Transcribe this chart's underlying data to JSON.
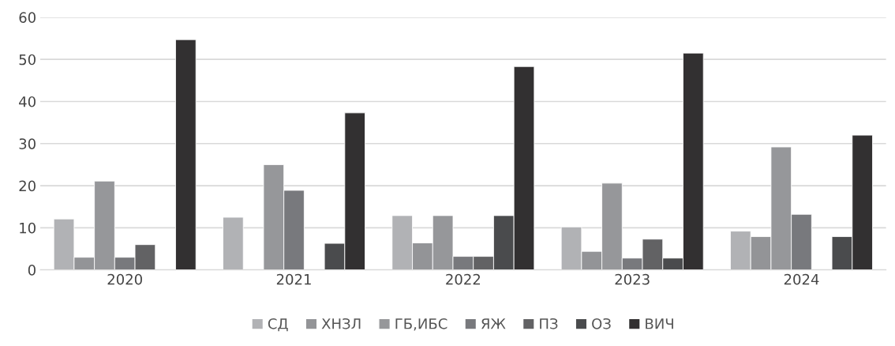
{
  "chart_data": {
    "type": "bar",
    "categories": [
      "2020",
      "2021",
      "2022",
      "2023",
      "2024"
    ],
    "series": [
      {
        "name": "СД",
        "color": "#b1b2b5",
        "values": [
          12.1,
          12.5,
          12.9,
          10.2,
          9.2
        ]
      },
      {
        "name": "ХНЗЛ",
        "color": "#939497",
        "values": [
          3,
          null,
          6.4,
          4.4,
          7.9
        ]
      },
      {
        "name": "ГБ,ИБС",
        "color": "#96979a",
        "values": [
          21.1,
          25,
          12.9,
          20.6,
          29.2
        ]
      },
      {
        "name": "ЯЖ",
        "color": "#78797d",
        "values": [
          3,
          18.9,
          3.2,
          2.8,
          13.2
        ]
      },
      {
        "name": "ПЗ",
        "color": "#626264",
        "values": [
          6,
          null,
          3.2,
          7.3,
          null
        ]
      },
      {
        "name": "ОЗ",
        "color": "#4a4b4d",
        "values": [
          null,
          6.3,
          12.9,
          2.8,
          7.9
        ]
      },
      {
        "name": "ВИЧ",
        "color": "#323031",
        "values": [
          54.7,
          37.3,
          48.3,
          51.5,
          32
        ]
      }
    ],
    "ylim": [
      0,
      60
    ],
    "yticks": [
      0,
      10,
      20,
      30,
      40,
      50,
      60
    ],
    "grid": "y",
    "legend": "bottom"
  }
}
